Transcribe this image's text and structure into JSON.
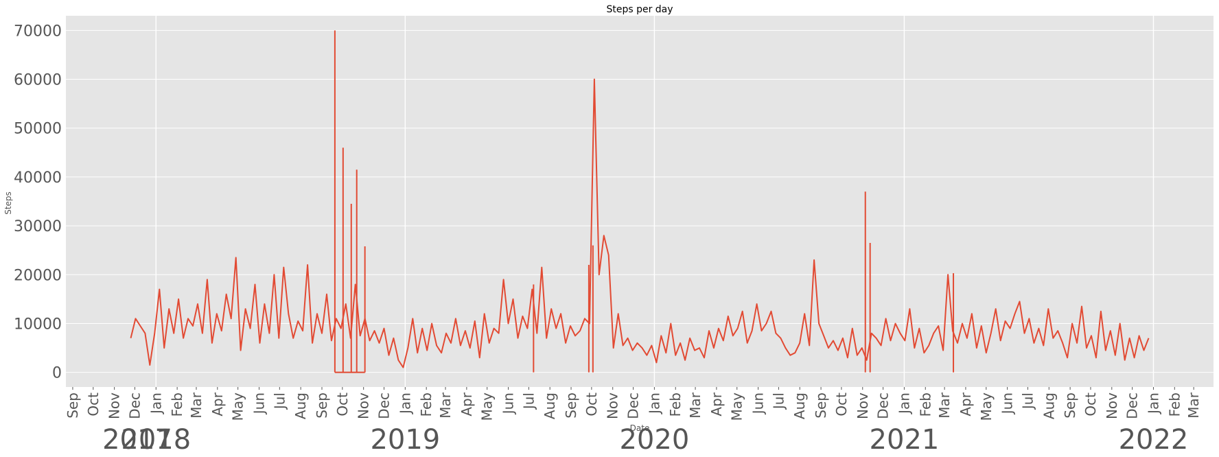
{
  "chart_data": {
    "type": "line",
    "title": "Steps per day",
    "xlabel": "Date",
    "ylabel": "Steps",
    "ylim": [
      -3000,
      73000
    ],
    "xlim": [
      "2017-08-22",
      "2022-03-30"
    ],
    "grid": true,
    "background_color": "#e5e5e5",
    "grid_color": "#ffffff",
    "line_color": "#e24a33",
    "tick_color": "#555555",
    "yticks": [
      0,
      10000,
      20000,
      30000,
      40000,
      50000,
      60000,
      70000
    ],
    "month_ticks": [
      {
        "date": "2017-09-01",
        "label": "Sep"
      },
      {
        "date": "2017-10-01",
        "label": "Oct"
      },
      {
        "date": "2017-11-01",
        "label": "Nov"
      },
      {
        "date": "2017-12-01",
        "label": "Dec"
      },
      {
        "date": "2018-01-01",
        "label": "Jan"
      },
      {
        "date": "2018-02-01",
        "label": "Feb"
      },
      {
        "date": "2018-03-01",
        "label": "Mar"
      },
      {
        "date": "2018-04-01",
        "label": "Apr"
      },
      {
        "date": "2018-05-01",
        "label": "May"
      },
      {
        "date": "2018-06-01",
        "label": "Jun"
      },
      {
        "date": "2018-07-01",
        "label": "Jul"
      },
      {
        "date": "2018-08-01",
        "label": "Aug"
      },
      {
        "date": "2018-09-01",
        "label": "Sep"
      },
      {
        "date": "2018-10-01",
        "label": "Oct"
      },
      {
        "date": "2018-11-01",
        "label": "Nov"
      },
      {
        "date": "2018-12-01",
        "label": "Dec"
      },
      {
        "date": "2019-01-01",
        "label": "Jan"
      },
      {
        "date": "2019-02-01",
        "label": "Feb"
      },
      {
        "date": "2019-03-01",
        "label": "Mar"
      },
      {
        "date": "2019-04-01",
        "label": "Apr"
      },
      {
        "date": "2019-05-01",
        "label": "May"
      },
      {
        "date": "2019-06-01",
        "label": "Jun"
      },
      {
        "date": "2019-07-01",
        "label": "Jul"
      },
      {
        "date": "2019-08-01",
        "label": "Aug"
      },
      {
        "date": "2019-09-01",
        "label": "Sep"
      },
      {
        "date": "2019-10-01",
        "label": "Oct"
      },
      {
        "date": "2019-11-01",
        "label": "Nov"
      },
      {
        "date": "2019-12-01",
        "label": "Dec"
      },
      {
        "date": "2020-01-01",
        "label": "Jan"
      },
      {
        "date": "2020-02-01",
        "label": "Feb"
      },
      {
        "date": "2020-03-01",
        "label": "Mar"
      },
      {
        "date": "2020-04-01",
        "label": "Apr"
      },
      {
        "date": "2020-05-01",
        "label": "May"
      },
      {
        "date": "2020-06-01",
        "label": "Jun"
      },
      {
        "date": "2020-07-01",
        "label": "Jul"
      },
      {
        "date": "2020-08-01",
        "label": "Aug"
      },
      {
        "date": "2020-09-01",
        "label": "Sep"
      },
      {
        "date": "2020-10-01",
        "label": "Oct"
      },
      {
        "date": "2020-11-01",
        "label": "Nov"
      },
      {
        "date": "2020-12-01",
        "label": "Dec"
      },
      {
        "date": "2021-01-01",
        "label": "Jan"
      },
      {
        "date": "2021-02-01",
        "label": "Feb"
      },
      {
        "date": "2021-03-01",
        "label": "Mar"
      },
      {
        "date": "2021-04-01",
        "label": "Apr"
      },
      {
        "date": "2021-05-01",
        "label": "May"
      },
      {
        "date": "2021-06-01",
        "label": "Jun"
      },
      {
        "date": "2021-07-01",
        "label": "Jul"
      },
      {
        "date": "2021-08-01",
        "label": "Aug"
      },
      {
        "date": "2021-09-01",
        "label": "Sep"
      },
      {
        "date": "2021-10-01",
        "label": "Oct"
      },
      {
        "date": "2021-11-01",
        "label": "Nov"
      },
      {
        "date": "2021-12-01",
        "label": "Dec"
      },
      {
        "date": "2022-01-01",
        "label": "Jan"
      },
      {
        "date": "2022-02-01",
        "label": "Feb"
      },
      {
        "date": "2022-03-01",
        "label": "Mar"
      }
    ],
    "year_ticks": [
      {
        "date": "2017-01-01",
        "label": "2017"
      },
      {
        "date": "2018-01-01",
        "label": "2018"
      },
      {
        "date": "2019-01-01",
        "label": "2019"
      },
      {
        "date": "2020-01-01",
        "label": "2020"
      },
      {
        "date": "2021-01-01",
        "label": "2021"
      },
      {
        "date": "2022-01-01",
        "label": "2022"
      }
    ],
    "series": [
      {
        "x": [
          "2017-11-25",
          "2017-12-02",
          "2017-12-09",
          "2017-12-16",
          "2017-12-23",
          "2017-12-30",
          "2018-01-06",
          "2018-01-13",
          "2018-01-20",
          "2018-01-27",
          "2018-02-03",
          "2018-02-10",
          "2018-02-17",
          "2018-02-24",
          "2018-03-03",
          "2018-03-10",
          "2018-03-17",
          "2018-03-24",
          "2018-03-31",
          "2018-04-07",
          "2018-04-14",
          "2018-04-21",
          "2018-04-28",
          "2018-05-05",
          "2018-05-12",
          "2018-05-19",
          "2018-05-26",
          "2018-06-02",
          "2018-06-09",
          "2018-06-16",
          "2018-06-23",
          "2018-06-30",
          "2018-07-07",
          "2018-07-14",
          "2018-07-21",
          "2018-07-28",
          "2018-08-04",
          "2018-08-11",
          "2018-08-18",
          "2018-08-25",
          "2018-09-01",
          "2018-09-08",
          "2018-09-15",
          "2018-09-22",
          "2018-09-29",
          "2018-10-06",
          "2018-10-13",
          "2018-10-20",
          "2018-10-27",
          "2018-11-03",
          "2018-11-10",
          "2018-11-17",
          "2018-11-24",
          "2018-12-01",
          "2018-12-08",
          "2018-12-15",
          "2018-12-22",
          "2018-12-29",
          "2019-01-05",
          "2019-01-12",
          "2019-01-19",
          "2019-01-26",
          "2019-02-02",
          "2019-02-09",
          "2019-02-16",
          "2019-02-23",
          "2019-03-02",
          "2019-03-09",
          "2019-03-16",
          "2019-03-23",
          "2019-03-30",
          "2019-04-06",
          "2019-04-13",
          "2019-04-20",
          "2019-04-27",
          "2019-05-04",
          "2019-05-11",
          "2019-05-18",
          "2019-05-25",
          "2019-06-01",
          "2019-06-08",
          "2019-06-15",
          "2019-06-22",
          "2019-06-29",
          "2019-07-06",
          "2019-07-13",
          "2019-07-20",
          "2019-07-27",
          "2019-08-03",
          "2019-08-10",
          "2019-08-17",
          "2019-08-24",
          "2019-08-31",
          "2019-09-07",
          "2019-09-14",
          "2019-09-21",
          "2019-09-28",
          "2019-10-05",
          "2019-10-12",
          "2019-10-19",
          "2019-10-26",
          "2019-11-02",
          "2019-11-09",
          "2019-11-16",
          "2019-11-23",
          "2019-11-30",
          "2019-12-07",
          "2019-12-14",
          "2019-12-21",
          "2019-12-28",
          "2020-01-04",
          "2020-01-11",
          "2020-01-18",
          "2020-01-25",
          "2020-02-01",
          "2020-02-08",
          "2020-02-15",
          "2020-02-22",
          "2020-02-29",
          "2020-03-07",
          "2020-03-14",
          "2020-03-21",
          "2020-03-28",
          "2020-04-04",
          "2020-04-11",
          "2020-04-18",
          "2020-04-25",
          "2020-05-02",
          "2020-05-09",
          "2020-05-16",
          "2020-05-23",
          "2020-05-30",
          "2020-06-06",
          "2020-06-13",
          "2020-06-20",
          "2020-06-27",
          "2020-07-04",
          "2020-07-11",
          "2020-07-18",
          "2020-07-25",
          "2020-08-01",
          "2020-08-08",
          "2020-08-15",
          "2020-08-22",
          "2020-08-29",
          "2020-09-05",
          "2020-09-12",
          "2020-09-19",
          "2020-09-26",
          "2020-10-03",
          "2020-10-10",
          "2020-10-17",
          "2020-10-24",
          "2020-10-31",
          "2020-11-07",
          "2020-11-14",
          "2020-11-21",
          "2020-11-28",
          "2020-12-05",
          "2020-12-12",
          "2020-12-19",
          "2020-12-26",
          "2021-01-02",
          "2021-01-09",
          "2021-01-16",
          "2021-01-23",
          "2021-01-30",
          "2021-02-06",
          "2021-02-13",
          "2021-02-20",
          "2021-02-27",
          "2021-03-06",
          "2021-03-13",
          "2021-03-20",
          "2021-03-27",
          "2021-04-03",
          "2021-04-10",
          "2021-04-17",
          "2021-04-24",
          "2021-05-01",
          "2021-05-08",
          "2021-05-15",
          "2021-05-22",
          "2021-05-29",
          "2021-06-05",
          "2021-06-12",
          "2021-06-19",
          "2021-06-26",
          "2021-07-03",
          "2021-07-10",
          "2021-07-17",
          "2021-07-24",
          "2021-07-31",
          "2021-08-07",
          "2021-08-14",
          "2021-08-21",
          "2021-08-28",
          "2021-09-04",
          "2021-09-11",
          "2021-09-18",
          "2021-09-25",
          "2021-10-02",
          "2021-10-09",
          "2021-10-16",
          "2021-10-23",
          "2021-10-30",
          "2021-11-06",
          "2021-11-13",
          "2021-11-20",
          "2021-11-27",
          "2021-12-04",
          "2021-12-11",
          "2021-12-18",
          "2021-12-25"
        ],
        "y": [
          7000,
          11000,
          9500,
          8000,
          1500,
          8000,
          17000,
          5000,
          13000,
          8000,
          15000,
          7000,
          11000,
          9500,
          14000,
          8000,
          19000,
          6000,
          12000,
          8500,
          16000,
          11000,
          23500,
          4500,
          13000,
          9000,
          18000,
          6000,
          14000,
          8000,
          20000,
          7000,
          21500,
          12000,
          7000,
          10500,
          8500,
          22000,
          6000,
          12000,
          8000,
          16000,
          6500,
          11000,
          9000,
          14000,
          7000,
          18000,
          7500,
          11000,
          6500,
          8500,
          6000,
          9000,
          3500,
          7000,
          2500,
          1000,
          5000,
          11000,
          4000,
          9000,
          4500,
          10000,
          5500,
          4000,
          8000,
          6000,
          11000,
          5500,
          8500,
          5000,
          10500,
          3000,
          12000,
          6000,
          9000,
          8000,
          19000,
          10000,
          15000,
          7000,
          11500,
          9000,
          17000,
          8000,
          21500,
          7000,
          13000,
          9000,
          12000,
          6000,
          9500,
          7500,
          8500,
          11000,
          10000,
          60000,
          20000,
          28000,
          24000,
          5000,
          12000,
          5500,
          7000,
          4500,
          6000,
          5000,
          3500,
          5500,
          2000,
          7500,
          4000,
          10000,
          3500,
          6000,
          2500,
          7000,
          4500,
          5000,
          3000,
          8500,
          5000,
          9000,
          6500,
          11500,
          7500,
          9000,
          12500,
          6000,
          8500,
          14000,
          8500,
          10000,
          12500,
          8000,
          7000,
          5000,
          3500,
          4000,
          6000,
          12000,
          5500,
          23000,
          10000,
          7500,
          5000,
          6500,
          4500,
          7000,
          3000,
          9000,
          3500,
          5000,
          2500,
          8000,
          7000,
          5500,
          11000,
          6500,
          10000,
          8000,
          6500,
          13000,
          5000,
          9000,
          4000,
          5500,
          8000,
          9500,
          4500,
          20000,
          8500,
          6000,
          10000,
          7000,
          12000,
          5000,
          9500,
          4000,
          8000,
          13000,
          6500,
          10500,
          9000,
          12000,
          14500,
          8000,
          11000,
          6000,
          9000,
          5500,
          13000,
          7000,
          8500,
          6000,
          3000,
          10000,
          6000,
          13500,
          5000,
          7500,
          3000,
          12500,
          4500,
          8500,
          3500,
          10000,
          2500,
          7000,
          3000,
          7500,
          4500,
          7000
        ]
      }
    ],
    "spikes": [
      {
        "date": "2018-09-20",
        "value": 70000
      },
      {
        "date": "2018-10-02",
        "value": 46000
      },
      {
        "date": "2018-10-14",
        "value": 34500
      },
      {
        "date": "2018-10-22",
        "value": 41500
      },
      {
        "date": "2018-11-03",
        "value": 25800
      },
      {
        "date": "2019-07-08",
        "value": 18000
      },
      {
        "date": "2019-09-27",
        "value": 22000
      },
      {
        "date": "2019-10-03",
        "value": 26000
      },
      {
        "date": "2020-11-05",
        "value": 37000
      },
      {
        "date": "2020-11-12",
        "value": 26500
      },
      {
        "date": "2021-03-14",
        "value": 20300
      }
    ],
    "zero_segment": [
      "2018-09-20",
      "2018-11-03"
    ]
  }
}
